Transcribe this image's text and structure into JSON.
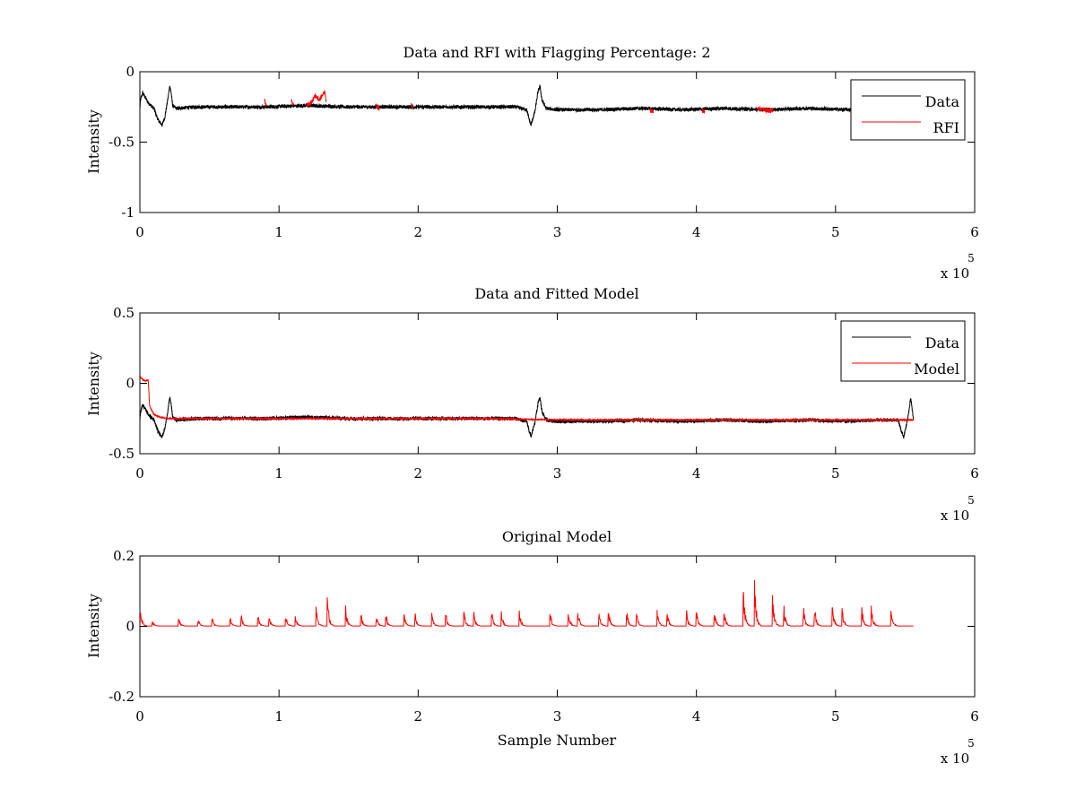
{
  "chart_data": [
    {
      "type": "line",
      "title": "Data and RFI with Flagging Percentage: 2",
      "xlabel": "",
      "ylabel": "Intensity",
      "xlim": [
        0,
        6
      ],
      "ylim": [
        -1,
        0
      ],
      "x_ticks": [
        0,
        1,
        2,
        3,
        4,
        5,
        6
      ],
      "x_tick_labels": [
        "0",
        "1",
        "2",
        "3",
        "4",
        "5",
        "6"
      ],
      "y_ticks": [
        0,
        -0.5,
        -1
      ],
      "y_tick_labels": [
        "0",
        "-0.5",
        "-1"
      ],
      "x_multiplier": {
        "base": "x 10",
        "exponent": "5"
      },
      "legend": {
        "placement": "top-right",
        "entries": [
          "Data",
          "RFI"
        ]
      },
      "grid": false,
      "series": [
        {
          "name": "Data",
          "color": "#000000",
          "noise": 0.013,
          "x": [
            0,
            0.005,
            0.02,
            0.06,
            0.1,
            0.13,
            0.16,
            0.18,
            0.2,
            0.215,
            0.225,
            0.235,
            0.26,
            0.4,
            0.6,
            0.9,
            1.2,
            1.5,
            1.8,
            2.1,
            2.4,
            2.7,
            2.78,
            2.81,
            2.84,
            2.86,
            2.875,
            2.89,
            2.92,
            3.0,
            3.3,
            3.6,
            3.9,
            4.2,
            4.5,
            4.8,
            5.1,
            5.3,
            5.45
          ],
          "y": [
            -0.26,
            -0.2,
            -0.15,
            -0.22,
            -0.26,
            -0.34,
            -0.38,
            -0.32,
            -0.2,
            -0.1,
            -0.15,
            -0.24,
            -0.26,
            -0.25,
            -0.25,
            -0.25,
            -0.24,
            -0.25,
            -0.25,
            -0.25,
            -0.25,
            -0.25,
            -0.27,
            -0.38,
            -0.28,
            -0.15,
            -0.1,
            -0.2,
            -0.26,
            -0.27,
            -0.27,
            -0.26,
            -0.27,
            -0.26,
            -0.27,
            -0.26,
            -0.27,
            -0.26,
            -0.26
          ]
        },
        {
          "name": "RFI",
          "color": "#ff0000",
          "noise": 0.018,
          "segments": [
            {
              "x": [
                0.895,
                0.91
              ],
              "y": [
                -0.2,
                -0.24
              ]
            },
            {
              "x": [
                1.09,
                1.105
              ],
              "y": [
                -0.2,
                -0.24
              ]
            },
            {
              "x": [
                1.2,
                1.23,
                1.26,
                1.29,
                1.33,
                1.34
              ],
              "y": [
                -0.24,
                -0.22,
                -0.17,
                -0.2,
                -0.14,
                -0.22
              ]
            },
            {
              "x": [
                1.7,
                1.72
              ],
              "y": [
                -0.24,
                -0.26
              ]
            },
            {
              "x": [
                1.95,
                1.96
              ],
              "y": [
                -0.24,
                -0.25
              ]
            },
            {
              "x": [
                3.67,
                3.69
              ],
              "y": [
                -0.27,
                -0.29
              ]
            },
            {
              "x": [
                4.04,
                4.06
              ],
              "y": [
                -0.27,
                -0.29
              ]
            },
            {
              "x": [
                4.44,
                4.55
              ],
              "y": [
                -0.26,
                -0.28
              ]
            }
          ]
        }
      ]
    },
    {
      "type": "line",
      "title": "Data and Fitted Model",
      "xlabel": "",
      "ylabel": "Intensity",
      "xlim": [
        0,
        6
      ],
      "ylim": [
        -0.5,
        0.5
      ],
      "x_ticks": [
        0,
        1,
        2,
        3,
        4,
        5,
        6
      ],
      "x_tick_labels": [
        "0",
        "1",
        "2",
        "3",
        "4",
        "5",
        "6"
      ],
      "y_ticks": [
        0.5,
        0,
        -0.5
      ],
      "y_tick_labels": [
        "0.5",
        "0",
        "-0.5"
      ],
      "x_multiplier": {
        "base": "x 10",
        "exponent": "5"
      },
      "legend": {
        "placement": "top-right",
        "entries": [
          "Data",
          "Model"
        ]
      },
      "grid": false,
      "series": [
        {
          "name": "Data",
          "color": "#000000",
          "noise": 0.013,
          "x": [
            0,
            0.005,
            0.02,
            0.06,
            0.1,
            0.13,
            0.16,
            0.18,
            0.2,
            0.215,
            0.225,
            0.235,
            0.26,
            0.4,
            0.6,
            0.9,
            1.2,
            1.5,
            1.8,
            2.1,
            2.4,
            2.7,
            2.78,
            2.81,
            2.84,
            2.86,
            2.875,
            2.89,
            2.92,
            3.0,
            3.3,
            3.6,
            3.9,
            4.2,
            4.5,
            4.8,
            5.1,
            5.3,
            5.45,
            5.47,
            5.49,
            5.52,
            5.54,
            5.56
          ],
          "y": [
            -0.26,
            -0.2,
            -0.15,
            -0.22,
            -0.26,
            -0.34,
            -0.38,
            -0.32,
            -0.2,
            -0.1,
            -0.15,
            -0.24,
            -0.26,
            -0.25,
            -0.25,
            -0.25,
            -0.24,
            -0.25,
            -0.25,
            -0.25,
            -0.25,
            -0.25,
            -0.27,
            -0.38,
            -0.28,
            -0.15,
            -0.1,
            -0.2,
            -0.26,
            -0.27,
            -0.27,
            -0.26,
            -0.27,
            -0.26,
            -0.27,
            -0.26,
            -0.27,
            -0.26,
            -0.26,
            -0.33,
            -0.38,
            -0.25,
            -0.1,
            -0.26
          ]
        },
        {
          "name": "Model",
          "color": "#ff0000",
          "noise": 0.004,
          "x": [
            0,
            0.03,
            0.06,
            0.07,
            0.08,
            0.1,
            0.14,
            0.2,
            0.5,
            1.0,
            1.5,
            2.0,
            2.5,
            3.0,
            3.5,
            4.0,
            4.5,
            5.0,
            5.5,
            5.56
          ],
          "y": [
            0.05,
            0.02,
            0.02,
            -0.16,
            -0.18,
            -0.22,
            -0.24,
            -0.25,
            -0.25,
            -0.25,
            -0.25,
            -0.25,
            -0.25,
            -0.26,
            -0.26,
            -0.26,
            -0.26,
            -0.26,
            -0.26,
            -0.26
          ]
        }
      ]
    },
    {
      "type": "line",
      "title": "Original Model",
      "xlabel": "Sample Number",
      "ylabel": "Intensity",
      "xlim": [
        0,
        6
      ],
      "ylim": [
        -0.2,
        0.2
      ],
      "x_ticks": [
        0,
        1,
        2,
        3,
        4,
        5,
        6
      ],
      "x_tick_labels": [
        "0",
        "1",
        "2",
        "3",
        "4",
        "5",
        "6"
      ],
      "y_ticks": [
        0.2,
        0,
        -0.2
      ],
      "y_tick_labels": [
        "0.2",
        "0",
        "-0.2"
      ],
      "x_multiplier": {
        "base": "x 10",
        "exponent": "5"
      },
      "grid": false,
      "series": [
        {
          "name": "",
          "color": "#ff0000",
          "baseline": 0.001,
          "x_end": 5.56,
          "spike_width": 0.045,
          "peaks_x": [
            0.005,
            0.09,
            0.28,
            0.42,
            0.52,
            0.65,
            0.73,
            0.85,
            0.93,
            1.05,
            1.12,
            1.27,
            1.35,
            1.48,
            1.59,
            1.7,
            1.77,
            1.9,
            1.98,
            2.1,
            2.2,
            2.33,
            2.4,
            2.53,
            2.6,
            2.73,
            2.95,
            3.08,
            3.15,
            3.3,
            3.37,
            3.5,
            3.57,
            3.72,
            3.79,
            3.93,
            4.0,
            4.13,
            4.2,
            4.34,
            4.42,
            4.55,
            4.63,
            4.77,
            4.85,
            4.98,
            5.05,
            5.19,
            5.26,
            5.4
          ],
          "peaks_y": [
            0.05,
            0.02,
            0.025,
            0.025,
            0.025,
            0.03,
            0.03,
            0.035,
            0.035,
            0.035,
            0.035,
            0.06,
            0.085,
            0.06,
            0.04,
            0.035,
            0.035,
            0.04,
            0.04,
            0.04,
            0.04,
            0.045,
            0.045,
            0.045,
            0.045,
            0.045,
            0.045,
            0.05,
            0.05,
            0.05,
            0.05,
            0.05,
            0.05,
            0.05,
            0.05,
            0.055,
            0.055,
            0.055,
            0.055,
            0.115,
            0.145,
            0.095,
            0.06,
            0.06,
            0.06,
            0.06,
            0.06,
            0.06,
            0.06,
            0.06
          ]
        }
      ]
    }
  ]
}
